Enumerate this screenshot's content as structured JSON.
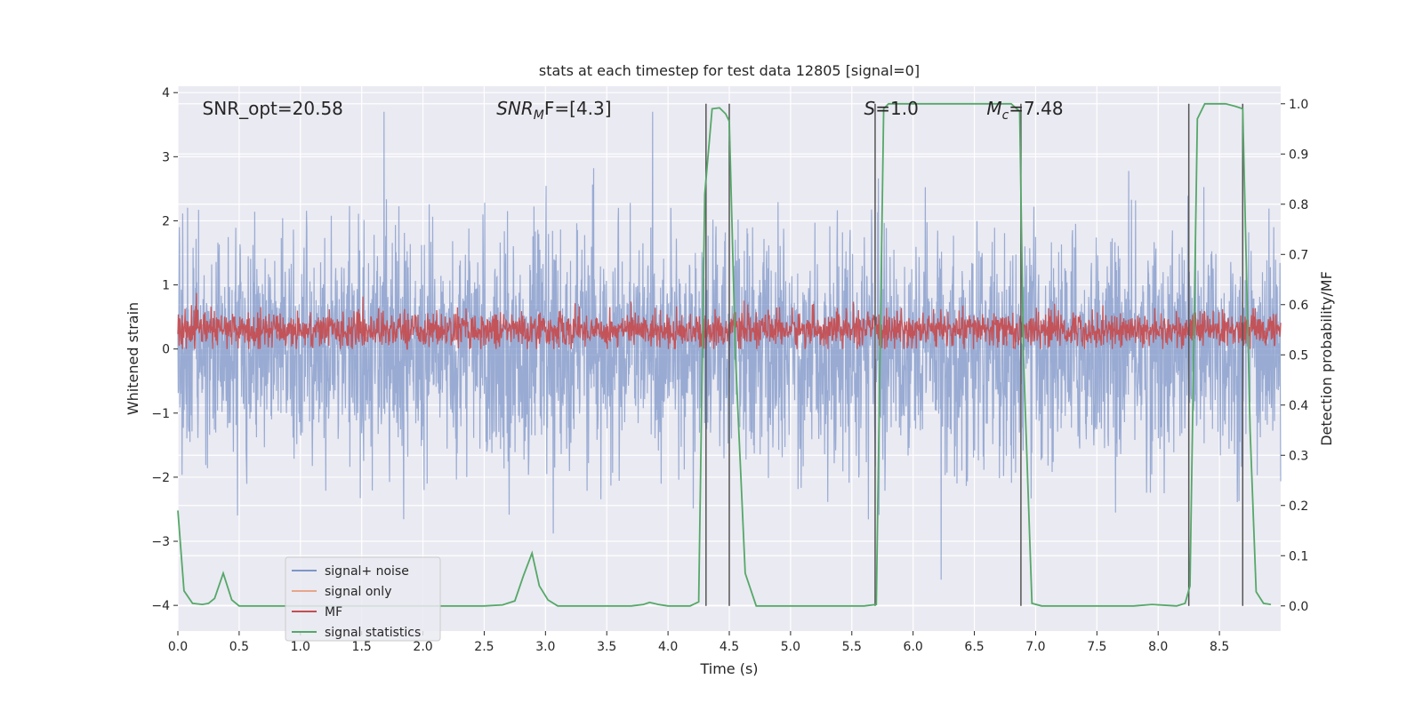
{
  "chart_data": {
    "type": "line",
    "title": "stats at each timestep for test data 12805 [signal=0]",
    "xlabel": "Time (s)",
    "ylabel": "Whitened strain",
    "ylabel_right": "Detection probability/MF",
    "xlim": [
      0,
      9
    ],
    "ylim": [
      -4.4,
      4.1
    ],
    "ylim_right": [
      -0.05,
      1.035
    ],
    "x_ticks": [
      0.0,
      0.5,
      1.0,
      1.5,
      2.0,
      2.5,
      3.0,
      3.5,
      4.0,
      4.5,
      5.0,
      5.5,
      6.0,
      6.5,
      7.0,
      7.5,
      8.0,
      8.5
    ],
    "x_tick_labels": [
      "0.0",
      "0.5",
      "1.0",
      "1.5",
      "2.0",
      "2.5",
      "3.0",
      "3.5",
      "4.0",
      "4.5",
      "5.0",
      "5.5",
      "6.0",
      "6.5",
      "7.0",
      "7.5",
      "8.0",
      "8.5"
    ],
    "y_ticks": [
      -4,
      -3,
      -2,
      -1,
      0,
      1,
      2,
      3,
      4
    ],
    "y_tick_labels": [
      "−4",
      "−3",
      "−2",
      "−1",
      "0",
      "1",
      "2",
      "3",
      "4"
    ],
    "y_right_ticks": [
      0.0,
      0.1,
      0.2,
      0.3,
      0.4,
      0.5,
      0.6,
      0.7,
      0.8,
      0.9,
      1.0
    ],
    "y_right_tick_labels": [
      "0.0",
      "0.1",
      "0.2",
      "0.3",
      "0.4",
      "0.5",
      "0.6",
      "0.7",
      "0.8",
      "0.9",
      "1.0"
    ],
    "grid": true,
    "legend_position": "lower-left",
    "annotations": [
      {
        "text": "SNR_opt=20.58",
        "x": 0.2,
        "y": 3.75
      },
      {
        "text": "SNR",
        "sub": "M",
        "rest": "F=[4.3]",
        "x": 2.6,
        "y": 3.75
      },
      {
        "text": "S",
        "rest": "=1.0",
        "x": 5.6,
        "y": 3.75
      },
      {
        "text": "M",
        "sub": "c",
        "rest": "=7.48",
        "x": 6.6,
        "y": 3.75
      }
    ],
    "series": [
      {
        "name": "signal+ noise",
        "color": "#7e96c8",
        "style": "noise band",
        "mean": 0.0,
        "sigma": 0.95,
        "approx_range": [
          -3.6,
          3.7
        ]
      },
      {
        "name": "signal only",
        "color": "#e8a58a",
        "values": []
      },
      {
        "name": "MF",
        "color": "#c44e52",
        "style": "noise band",
        "mean": 0.3,
        "sigma": 0.15,
        "approx_range": [
          0.0,
          0.95
        ]
      },
      {
        "name": "signal statistics",
        "color": "#55a868",
        "axis": "right",
        "x": [
          0.0,
          0.05,
          0.12,
          0.2,
          0.25,
          0.3,
          0.37,
          0.44,
          0.5,
          0.6,
          2.5,
          2.65,
          2.75,
          2.82,
          2.89,
          2.95,
          3.02,
          3.1,
          3.7,
          3.8,
          3.85,
          3.92,
          4.0,
          4.18,
          4.25,
          4.3,
          4.36,
          4.42,
          4.47,
          4.5,
          4.55,
          4.63,
          4.72,
          5.5,
          5.6,
          5.7,
          5.76,
          5.8,
          6.8,
          6.87,
          6.9,
          6.97,
          7.05,
          7.2,
          7.8,
          7.95,
          8.15,
          8.22,
          8.26,
          8.32,
          8.38,
          8.42,
          8.55,
          8.63,
          8.69,
          8.75,
          8.8,
          8.86,
          8.92
        ],
        "y": [
          0.19,
          0.03,
          0.005,
          0.003,
          0.005,
          0.015,
          0.065,
          0.012,
          0.0,
          0.0,
          0.0,
          0.002,
          0.01,
          0.06,
          0.105,
          0.04,
          0.012,
          0.0,
          0.0,
          0.003,
          0.007,
          0.003,
          0.0,
          0.0,
          0.008,
          0.82,
          0.99,
          0.992,
          0.98,
          0.965,
          0.5,
          0.065,
          0.0,
          0.0,
          0.0,
          0.003,
          0.99,
          1.0,
          1.0,
          0.985,
          0.5,
          0.005,
          0.0,
          0.0,
          0.0,
          0.003,
          0.0,
          0.005,
          0.04,
          0.97,
          1.0,
          1.0,
          1.0,
          0.995,
          0.99,
          0.35,
          0.028,
          0.005,
          0.003
        ]
      }
    ],
    "vertical_lines": [
      4.31,
      4.5,
      5.69,
      6.88,
      8.25,
      8.69
    ]
  }
}
